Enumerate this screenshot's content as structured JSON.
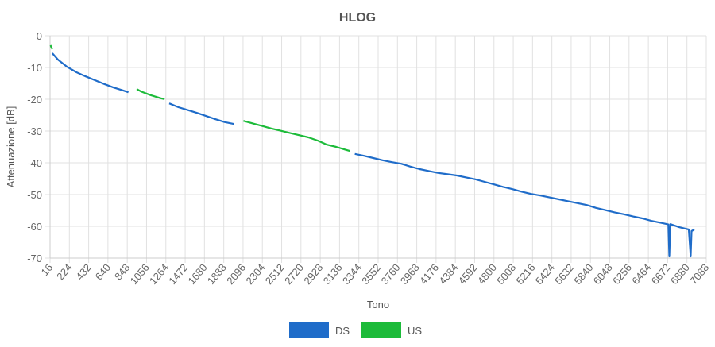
{
  "chart_data": {
    "type": "line",
    "title": "HLOG",
    "xlabel": "Tono",
    "ylabel": "Attenuazione [dB]",
    "xlim": [
      16,
      7088
    ],
    "ylim": [
      -70,
      0
    ],
    "x_ticks": [
      16,
      224,
      432,
      640,
      848,
      1056,
      1264,
      1472,
      1680,
      1888,
      2096,
      2304,
      2512,
      2720,
      2928,
      3136,
      3344,
      3552,
      3760,
      3968,
      4176,
      4384,
      4592,
      4800,
      5008,
      5216,
      5424,
      5632,
      5840,
      6048,
      6256,
      6464,
      6672,
      6880,
      7088
    ],
    "y_ticks": [
      0,
      -10,
      -20,
      -30,
      -40,
      -50,
      -60,
      -70
    ],
    "grid": true,
    "legend_position": "bottom",
    "series": [
      {
        "name": "DS",
        "color": "#1f6cc9",
        "segments": [
          [
            [
              40,
              -5.5
            ],
            [
              100,
              -7.5
            ],
            [
              200,
              -9.8
            ],
            [
              300,
              -11.5
            ],
            [
              400,
              -12.8
            ],
            [
              500,
              -14.0
            ],
            [
              600,
              -15.2
            ],
            [
              700,
              -16.3
            ],
            [
              800,
              -17.2
            ],
            [
              860,
              -17.8
            ]
          ],
          [
            [
              1300,
              -21.3
            ],
            [
              1400,
              -22.5
            ],
            [
              1500,
              -23.4
            ],
            [
              1600,
              -24.3
            ],
            [
              1700,
              -25.3
            ],
            [
              1800,
              -26.3
            ],
            [
              1900,
              -27.2
            ],
            [
              2000,
              -27.8
            ]
          ],
          [
            [
              3300,
              -37.2
            ],
            [
              3400,
              -37.8
            ],
            [
              3500,
              -38.5
            ],
            [
              3600,
              -39.2
            ],
            [
              3700,
              -39.8
            ],
            [
              3800,
              -40.3
            ],
            [
              3900,
              -41.2
            ],
            [
              4000,
              -42.0
            ],
            [
              4100,
              -42.6
            ],
            [
              4200,
              -43.2
            ],
            [
              4300,
              -43.6
            ],
            [
              4400,
              -44.0
            ],
            [
              4500,
              -44.6
            ],
            [
              4600,
              -45.2
            ],
            [
              4700,
              -46.0
            ],
            [
              4800,
              -46.8
            ],
            [
              4900,
              -47.6
            ],
            [
              5000,
              -48.3
            ],
            [
              5100,
              -49.1
            ],
            [
              5200,
              -49.8
            ],
            [
              5300,
              -50.3
            ],
            [
              5400,
              -50.9
            ],
            [
              5500,
              -51.5
            ],
            [
              5600,
              -52.1
            ],
            [
              5700,
              -52.7
            ],
            [
              5800,
              -53.3
            ],
            [
              5900,
              -54.2
            ],
            [
              6000,
              -54.9
            ],
            [
              6100,
              -55.6
            ],
            [
              6200,
              -56.2
            ],
            [
              6300,
              -56.9
            ],
            [
              6400,
              -57.5
            ],
            [
              6500,
              -58.3
            ],
            [
              6600,
              -58.9
            ],
            [
              6680,
              -59.4
            ],
            [
              6690,
              -69.5
            ],
            [
              6700,
              -59.3
            ],
            [
              6800,
              -60.3
            ],
            [
              6900,
              -61.0
            ],
            [
              6920,
              -69.5
            ],
            [
              6930,
              -61.5
            ],
            [
              6960,
              -61.0
            ]
          ]
        ]
      },
      {
        "name": "US",
        "color": "#1dbb3a",
        "segments": [
          [
            [
              20,
              -3.0
            ],
            [
              40,
              -4.2
            ]
          ],
          [
            [
              950,
              -16.8
            ],
            [
              1000,
              -17.6
            ],
            [
              1100,
              -18.7
            ],
            [
              1200,
              -19.6
            ],
            [
              1250,
              -20.0
            ]
          ],
          [
            [
              2100,
              -26.8
            ],
            [
              2200,
              -27.6
            ],
            [
              2300,
              -28.4
            ],
            [
              2400,
              -29.2
            ],
            [
              2500,
              -29.9
            ],
            [
              2600,
              -30.6
            ],
            [
              2700,
              -31.3
            ],
            [
              2800,
              -32.0
            ],
            [
              2900,
              -33.0
            ],
            [
              3000,
              -34.3
            ],
            [
              3100,
              -35.0
            ],
            [
              3200,
              -35.9
            ],
            [
              3250,
              -36.3
            ]
          ]
        ]
      }
    ]
  }
}
